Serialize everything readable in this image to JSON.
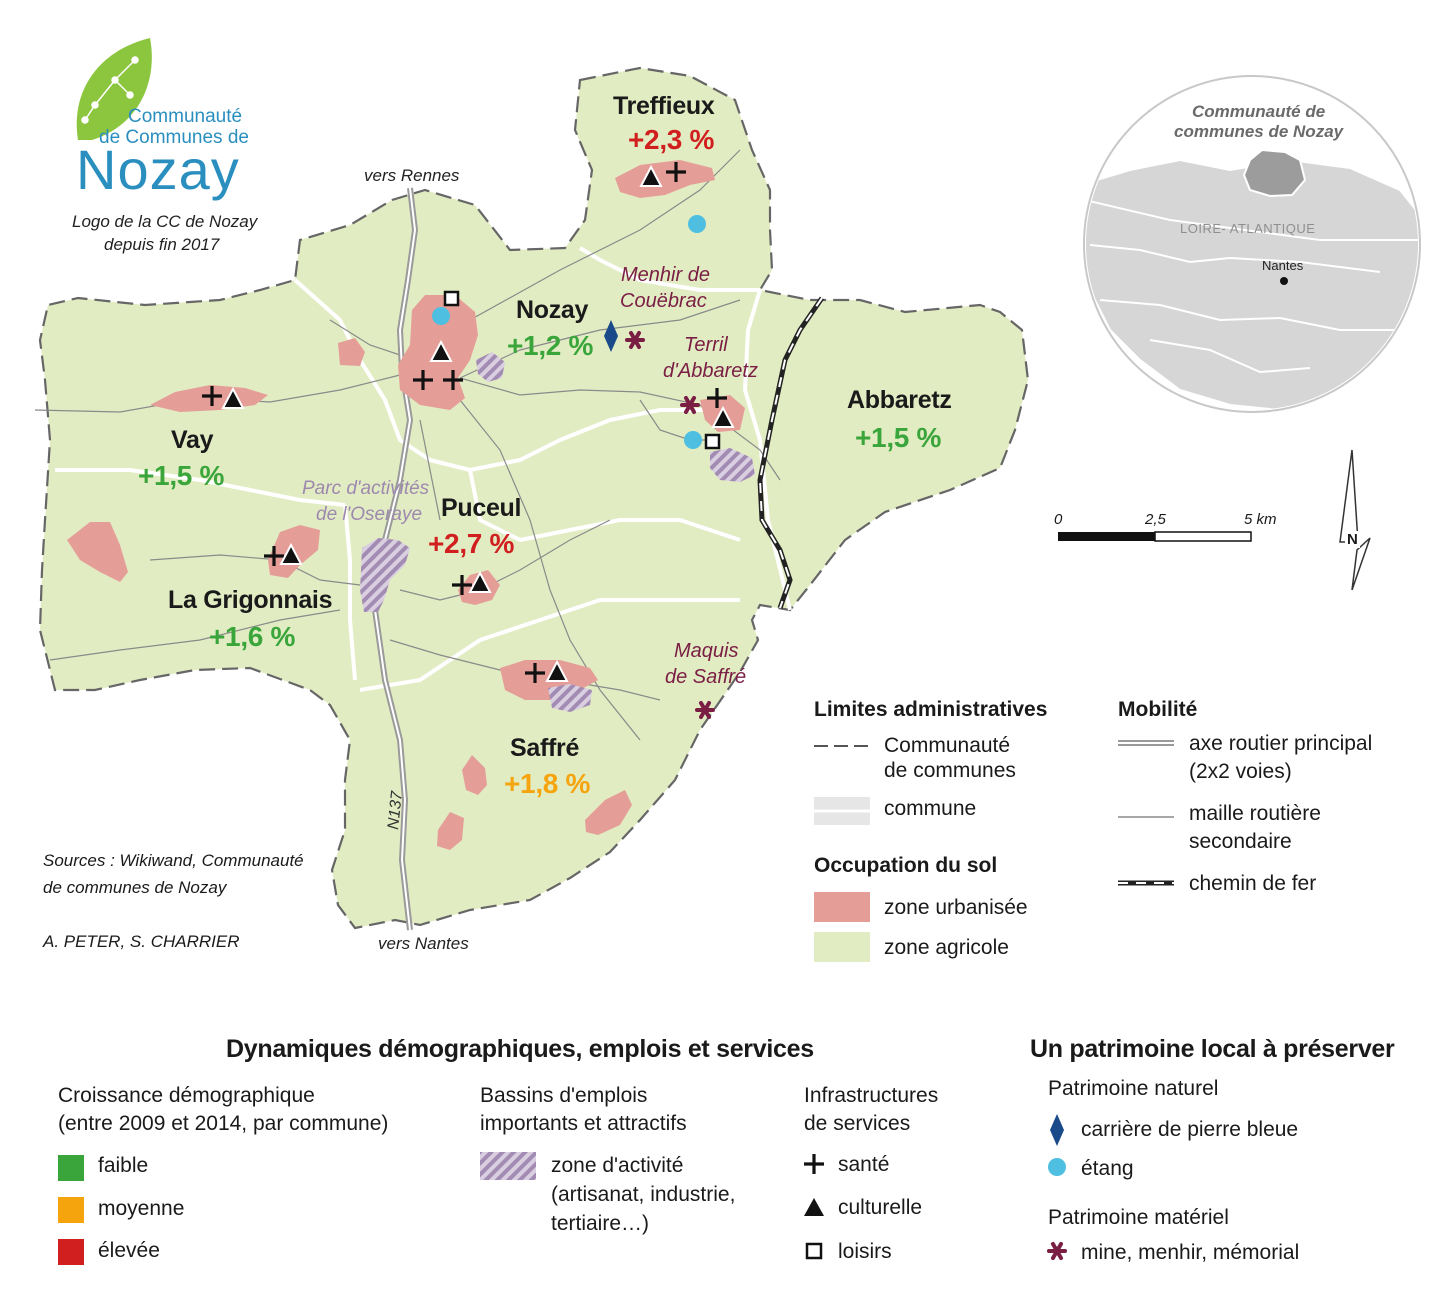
{
  "logo": {
    "line1": "Communauté",
    "line2": "de Communes de",
    "big": "Nozay",
    "caption1": "Logo de la CC de Nozay",
    "caption2": "depuis fin 2017"
  },
  "roads": {
    "north": "vers Rennes",
    "south": "vers Nantes",
    "n137": "N137"
  },
  "communes": [
    {
      "name": "Treffieux",
      "growth": "+2,3 %",
      "level": "élevée"
    },
    {
      "name": "Nozay",
      "growth": "+1,2 %",
      "level": "faible"
    },
    {
      "name": "Abbaretz",
      "growth": "+1,5 %",
      "level": "faible"
    },
    {
      "name": "Vay",
      "growth": "+1,5 %",
      "level": "faible"
    },
    {
      "name": "Puceul",
      "growth": "+2,7 %",
      "level": "élevée"
    },
    {
      "name": "La Grigonnais",
      "growth": "+1,6 %",
      "level": "faible"
    },
    {
      "name": "Saffré",
      "growth": "+1,8 %",
      "level": "moyenne"
    }
  ],
  "heritage_labels": {
    "menhir_1": "Menhir de",
    "menhir_2": "Couëbrac",
    "terril_1": "Terril",
    "terril_2": "d'Abbaretz",
    "maquis_1": "Maquis",
    "maquis_2": "de Saffré",
    "parc_1": "Parc d'activités",
    "parc_2": "de l'Oseraye"
  },
  "inset": {
    "title1": "Communauté de",
    "title2": "communes de Nozay",
    "dept": "LOIRE- ATLANTIQUE",
    "city": "Nantes"
  },
  "scale": {
    "t0": "0",
    "t1": "2,5",
    "t2": "5 km"
  },
  "north_label": "N",
  "sources": {
    "line1": "Sources : Wikiwand, Communauté",
    "line2": "de communes de Nozay",
    "authors": "A. PETER, S. CHARRIER"
  },
  "legend_limits": {
    "title": "Limites administratives",
    "cc_1": "Communauté",
    "cc_2": "de communes",
    "commune": "commune"
  },
  "legend_mobility": {
    "title": "Mobilité",
    "axe_1": "axe routier principal",
    "axe_2": "(2x2 voies)",
    "maille_1": "maille routière",
    "maille_2": "secondaire",
    "rail": "chemin de fer"
  },
  "legend_landuse": {
    "title": "Occupation du sol",
    "urban": "zone urbanisée",
    "agri": "zone agricole"
  },
  "legend_dyn": {
    "title": "Dynamiques démographiques, emplois et services",
    "growth_1": "Croissance démographique",
    "growth_2": "(entre 2009 et 2014, par commune)",
    "low": "faible",
    "mid": "moyenne",
    "high": "élevée",
    "jobs_1": "Bassins d'emplois",
    "jobs_2": "importants et attractifs",
    "zone_1": "zone d'activité",
    "zone_2": "(artisanat, industrie,",
    "zone_3": "tertiaire…)",
    "infra_1": "Infrastructures",
    "infra_2": "de services",
    "health": "santé",
    "culture": "culturelle",
    "leisure": "loisirs"
  },
  "legend_heritage": {
    "title": "Un patrimoine local à préserver",
    "natural": "Patrimoine naturel",
    "quarry": "carrière de pierre bleue",
    "pond": "étang",
    "material": "Patrimoine matériel",
    "mine": "mine, menhir, mémorial"
  },
  "colors": {
    "agri": "#e2ecc3",
    "urban": "#e59d98",
    "low": "#3aa53a",
    "mid": "#f5a40d",
    "high": "#d11f1f",
    "heritage": "#7a1e44",
    "activity": "#a38cb3",
    "pond": "#4ebfe1",
    "quarry": "#1a4a8a"
  }
}
